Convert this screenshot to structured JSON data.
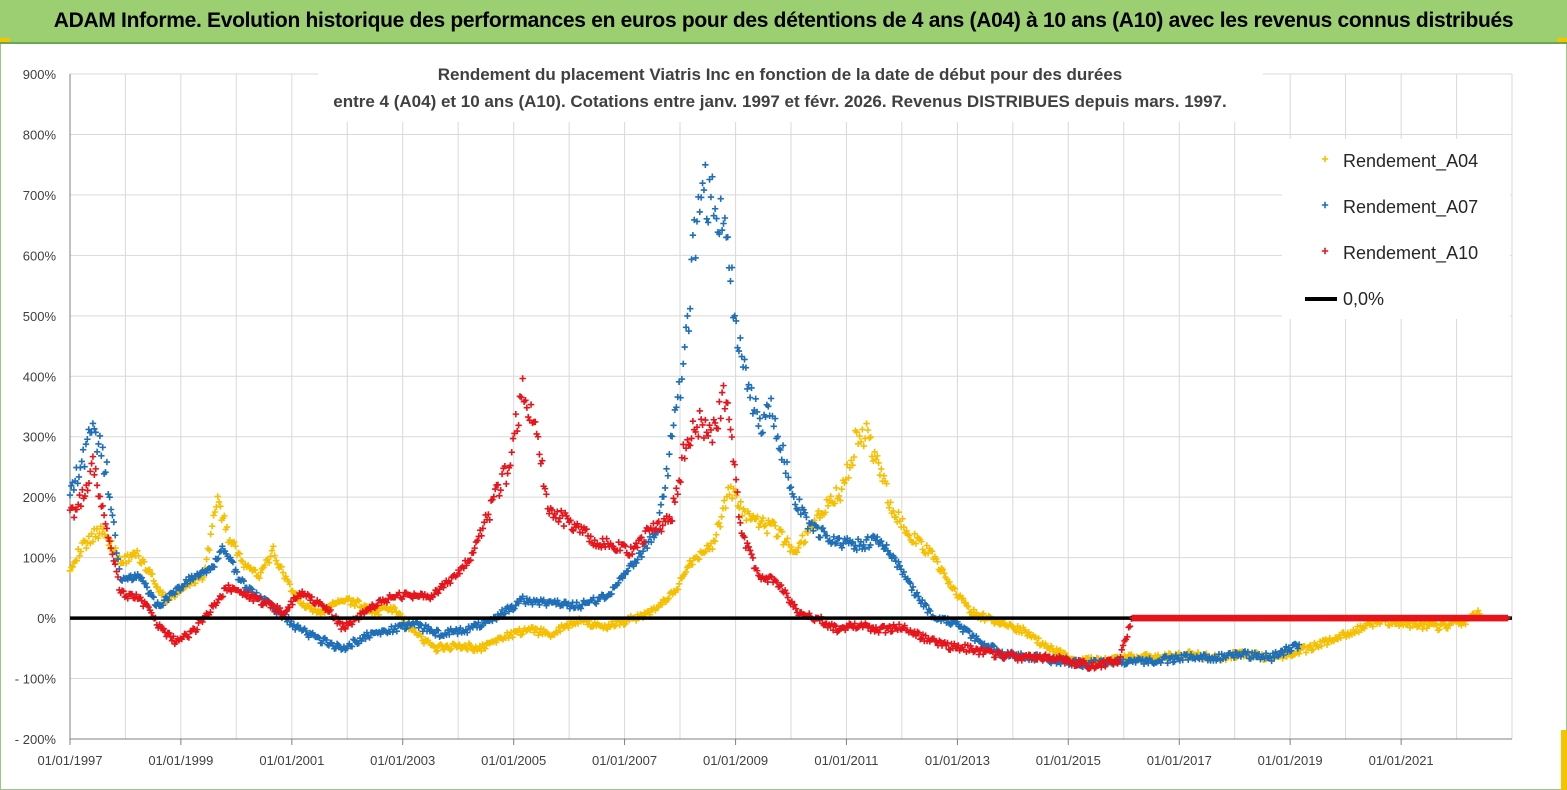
{
  "banner": {
    "title": "ADAM Informe. Evolution historique des performances en euros pour des détentions de 4 ans (A04) à 10 ans (A10) avec les revenus connus distribués"
  },
  "colors": {
    "banner_bg": "#9ccf72",
    "A04": "#f6c000",
    "A07": "#1f6fb8",
    "A10": "#e8141b",
    "zero_line": "#000000",
    "grid": "#d9d9d9"
  },
  "chart_data": {
    "type": "scatter",
    "title_lines": [
      "Rendement du placement Viatris Inc en fonction de la date de début pour des durées",
      "entre 4 (A04) et 10 ans (A10).  Cotations entre janv. 1997 et févr. 2026. Revenus DISTRIBUES depuis mars. 1997."
    ],
    "x_axis": {
      "type": "date",
      "range": [
        "1997-01-01",
        "2023-01-01"
      ],
      "tick_labels": [
        "01/01/1997",
        "01/01/1999",
        "01/01/2001",
        "01/01/2003",
        "01/01/2005",
        "01/01/2007",
        "01/01/2009",
        "01/01/2011",
        "01/01/2013",
        "01/01/2015",
        "01/01/2017",
        "01/01/2019",
        "01/01/2021"
      ]
    },
    "y_axis": {
      "range": [
        -200,
        900
      ],
      "tick_values": [
        -200,
        -100,
        0,
        100,
        200,
        300,
        400,
        500,
        600,
        700,
        800,
        900
      ],
      "tick_labels": [
        "- 200%",
        "- 100%",
        "0%",
        "100%",
        "200%",
        "300%",
        "400%",
        "500%",
        "600%",
        "700%",
        "800%",
        "900%"
      ],
      "unit": "%"
    },
    "grid": true,
    "legend_position": "top-right",
    "series": [
      {
        "name": "Rendement_A04",
        "marker": "+",
        "color": "#f6c000",
        "points": [
          [
            "1997-01-01",
            85
          ],
          [
            "1997-04-01",
            120
          ],
          [
            "1997-08-01",
            150
          ],
          [
            "1997-12-01",
            90
          ],
          [
            "1998-03-01",
            110
          ],
          [
            "1998-06-01",
            80
          ],
          [
            "1998-10-01",
            25
          ],
          [
            "1999-02-01",
            55
          ],
          [
            "1999-06-01",
            70
          ],
          [
            "1999-09-01",
            200
          ],
          [
            "1999-11-01",
            140
          ],
          [
            "2000-03-01",
            85
          ],
          [
            "2000-06-01",
            70
          ],
          [
            "2000-09-01",
            110
          ],
          [
            "2000-12-01",
            60
          ],
          [
            "2001-03-01",
            25
          ],
          [
            "2001-07-01",
            5
          ],
          [
            "2001-11-01",
            30
          ],
          [
            "2002-03-01",
            25
          ],
          [
            "2002-07-01",
            10
          ],
          [
            "2002-11-01",
            15
          ],
          [
            "2003-03-01",
            -20
          ],
          [
            "2003-08-01",
            -50
          ],
          [
            "2004-01-01",
            -45
          ],
          [
            "2004-06-01",
            -50
          ],
          [
            "2004-11-01",
            -30
          ],
          [
            "2005-04-01",
            -20
          ],
          [
            "2005-09-01",
            -25
          ],
          [
            "2006-03-01",
            -5
          ],
          [
            "2006-09-01",
            -15
          ],
          [
            "2007-03-01",
            0
          ],
          [
            "2007-08-01",
            15
          ],
          [
            "2007-12-01",
            45
          ],
          [
            "2008-04-01",
            100
          ],
          [
            "2008-08-01",
            120
          ],
          [
            "2008-12-01",
            215
          ],
          [
            "2009-04-01",
            160
          ],
          [
            "2009-09-01",
            150
          ],
          [
            "2010-02-01",
            110
          ],
          [
            "2010-07-01",
            170
          ],
          [
            "2010-12-01",
            210
          ],
          [
            "2011-03-01",
            290
          ],
          [
            "2011-06-01",
            300
          ],
          [
            "2011-10-01",
            200
          ],
          [
            "2012-02-01",
            140
          ],
          [
            "2012-07-01",
            110
          ],
          [
            "2012-11-01",
            60
          ],
          [
            "2013-04-01",
            10
          ],
          [
            "2013-09-01",
            -5
          ],
          [
            "2014-03-01",
            -20
          ],
          [
            "2014-09-01",
            -50
          ],
          [
            "2015-03-01",
            -70
          ],
          [
            "2015-09-01",
            -70
          ],
          [
            "2016-03-01",
            -65
          ],
          [
            "2016-09-01",
            -65
          ],
          [
            "2017-03-01",
            -60
          ],
          [
            "2017-09-01",
            -65
          ],
          [
            "2018-03-01",
            -60
          ],
          [
            "2018-09-01",
            -65
          ],
          [
            "2019-03-01",
            -55
          ],
          [
            "2019-09-01",
            -40
          ],
          [
            "2020-03-01",
            -20
          ],
          [
            "2020-09-01",
            -5
          ],
          [
            "2021-03-01",
            -10
          ],
          [
            "2021-09-01",
            -15
          ],
          [
            "2022-03-01",
            -5
          ],
          [
            "2022-06-01",
            10
          ]
        ]
      },
      {
        "name": "Rendement_A07",
        "marker": "+",
        "color": "#1f6fb8",
        "points": [
          [
            "1997-01-01",
            215
          ],
          [
            "1997-03-01",
            240
          ],
          [
            "1997-06-01",
            320
          ],
          [
            "1997-09-01",
            240
          ],
          [
            "1997-12-01",
            60
          ],
          [
            "1998-04-01",
            70
          ],
          [
            "1998-08-01",
            20
          ],
          [
            "1998-12-01",
            45
          ],
          [
            "1999-04-01",
            70
          ],
          [
            "1999-08-01",
            80
          ],
          [
            "1999-10-01",
            120
          ],
          [
            "2000-02-01",
            60
          ],
          [
            "2000-06-01",
            35
          ],
          [
            "2000-10-01",
            10
          ],
          [
            "2001-02-01",
            -15
          ],
          [
            "2001-07-01",
            -35
          ],
          [
            "2001-12-01",
            -50
          ],
          [
            "2002-05-01",
            -30
          ],
          [
            "2002-10-01",
            -20
          ],
          [
            "2003-03-01",
            -10
          ],
          [
            "2003-09-01",
            -25
          ],
          [
            "2004-03-01",
            -20
          ],
          [
            "2004-09-01",
            0
          ],
          [
            "2005-03-01",
            30
          ],
          [
            "2005-09-01",
            25
          ],
          [
            "2006-03-01",
            20
          ],
          [
            "2006-09-01",
            35
          ],
          [
            "2007-03-01",
            90
          ],
          [
            "2007-08-01",
            140
          ],
          [
            "2007-11-01",
            280
          ],
          [
            "2008-02-01",
            420
          ],
          [
            "2008-05-01",
            700
          ],
          [
            "2008-08-01",
            700
          ],
          [
            "2008-11-01",
            620
          ],
          [
            "2009-03-01",
            400
          ],
          [
            "2009-06-01",
            320
          ],
          [
            "2009-09-01",
            350
          ],
          [
            "2010-01-01",
            210
          ],
          [
            "2010-05-01",
            150
          ],
          [
            "2010-10-01",
            130
          ],
          [
            "2011-03-01",
            120
          ],
          [
            "2011-08-01",
            130
          ],
          [
            "2011-12-01",
            90
          ],
          [
            "2012-04-01",
            40
          ],
          [
            "2012-08-01",
            0
          ],
          [
            "2013-01-01",
            -10
          ],
          [
            "2013-06-01",
            -40
          ],
          [
            "2013-11-01",
            -60
          ],
          [
            "2014-06-01",
            -65
          ],
          [
            "2015-03-01",
            -75
          ],
          [
            "2015-09-01",
            -75
          ],
          [
            "2016-03-01",
            -70
          ],
          [
            "2016-09-01",
            -70
          ],
          [
            "2017-03-01",
            -65
          ],
          [
            "2017-09-01",
            -65
          ],
          [
            "2018-03-01",
            -60
          ],
          [
            "2018-09-01",
            -65
          ],
          [
            "2019-01-01",
            -50
          ],
          [
            "2019-03-01",
            -45
          ]
        ]
      },
      {
        "name": "Rendement_A10",
        "marker": "+",
        "color": "#e8141b",
        "points": [
          [
            "1997-01-01",
            170
          ],
          [
            "1997-04-01",
            200
          ],
          [
            "1997-06-01",
            250
          ],
          [
            "1997-09-01",
            150
          ],
          [
            "1997-12-01",
            40
          ],
          [
            "1998-04-01",
            35
          ],
          [
            "1998-09-01",
            -20
          ],
          [
            "1998-12-01",
            -40
          ],
          [
            "1999-04-01",
            -20
          ],
          [
            "1999-08-01",
            20
          ],
          [
            "1999-11-01",
            50
          ],
          [
            "2000-03-01",
            40
          ],
          [
            "2000-07-01",
            25
          ],
          [
            "2000-11-01",
            10
          ],
          [
            "2001-03-01",
            40
          ],
          [
            "2001-08-01",
            20
          ],
          [
            "2001-12-01",
            -15
          ],
          [
            "2002-05-01",
            10
          ],
          [
            "2002-09-01",
            30
          ],
          [
            "2003-02-01",
            40
          ],
          [
            "2003-07-01",
            35
          ],
          [
            "2003-11-01",
            60
          ],
          [
            "2004-04-01",
            100
          ],
          [
            "2004-09-01",
            200
          ],
          [
            "2004-12-01",
            250
          ],
          [
            "2005-03-01",
            380
          ],
          [
            "2005-06-01",
            300
          ],
          [
            "2005-09-01",
            170
          ],
          [
            "2006-01-01",
            160
          ],
          [
            "2006-06-01",
            130
          ],
          [
            "2006-10-01",
            120
          ],
          [
            "2007-03-01",
            110
          ],
          [
            "2007-07-01",
            150
          ],
          [
            "2007-11-01",
            160
          ],
          [
            "2008-02-01",
            280
          ],
          [
            "2008-05-01",
            320
          ],
          [
            "2008-08-01",
            300
          ],
          [
            "2008-11-01",
            380
          ],
          [
            "2009-02-01",
            150
          ],
          [
            "2009-06-01",
            70
          ],
          [
            "2009-10-01",
            60
          ],
          [
            "2010-03-01",
            5
          ],
          [
            "2010-07-01",
            0
          ],
          [
            "2010-11-01",
            -20
          ],
          [
            "2011-04-01",
            -10
          ],
          [
            "2011-08-01",
            -20
          ],
          [
            "2012-01-01",
            -15
          ],
          [
            "2012-05-01",
            -30
          ],
          [
            "2012-10-01",
            -45
          ],
          [
            "2013-03-01",
            -50
          ],
          [
            "2013-09-01",
            -60
          ],
          [
            "2014-03-01",
            -65
          ],
          [
            "2014-09-01",
            -65
          ],
          [
            "2015-03-01",
            -75
          ],
          [
            "2015-07-01",
            -80
          ],
          [
            "2015-12-01",
            -70
          ],
          [
            "2016-03-01",
            0
          ],
          [
            "2017-01-01",
            0
          ],
          [
            "2018-01-01",
            0
          ],
          [
            "2019-01-01",
            0
          ],
          [
            "2020-01-01",
            0
          ],
          [
            "2021-01-01",
            0
          ],
          [
            "2022-01-01",
            0
          ],
          [
            "2022-12-01",
            0
          ]
        ]
      },
      {
        "name": "0,0%",
        "type": "line",
        "color": "#000000",
        "points": [
          [
            "1997-01-01",
            0
          ],
          [
            "2023-01-01",
            0
          ]
        ]
      }
    ]
  }
}
